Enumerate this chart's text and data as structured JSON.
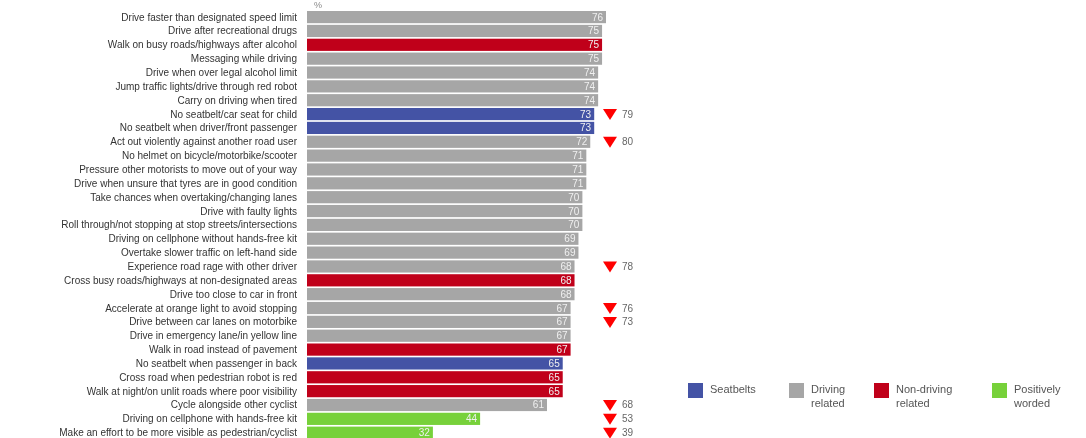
{
  "chart_data": {
    "type": "bar",
    "orientation": "horizontal",
    "xlabel": "%",
    "data_labels": true,
    "legend": "right",
    "categories": [
      "Drive faster than designated speed limit",
      "Drive after recreational drugs",
      "Walk on busy roads/highways after alcohol",
      "Messaging while driving",
      "Drive when over legal alcohol limit",
      "Jump traffic lights/drive through red robot",
      "Carry on driving when tired",
      "No seatbelt/car seat for child",
      "No seatbelt when driver/front passenger",
      "Act out violently against another road user",
      "No helmet on bicycle/motorbike/scooter",
      "Pressure other motorists to move out of your way",
      "Drive when unsure that tyres are in good condition",
      "Take chances when overtaking/changing lanes",
      "Drive with faulty lights",
      "Roll through/not stopping at stop streets/intersections",
      "Driving on cellphone without hands-free kit",
      "Overtake slower traffic on left-hand side",
      "Experience road rage with other driver",
      "Cross busy roads/highways at non-designated areas",
      "Drive too close to car in front",
      "Accelerate at orange light to avoid stopping",
      "Drive between car lanes on motorbike",
      "Drive in emergency lane/in yellow line",
      "Walk in road instead of pavement",
      "No seatbelt when passenger in back",
      "Cross road when pedestrian robot is red",
      "Walk at night/on unlit roads where poor visibility",
      "Cycle alongside other cyclist",
      "Driving on cellphone with hands-free kit",
      "Make an effort to be more visible as pedestrian/cyclist"
    ],
    "series": [
      {
        "name": "Seatbelts",
        "color": "#4453a5",
        "values": [
          null,
          null,
          null,
          null,
          null,
          null,
          null,
          73,
          73,
          null,
          null,
          null,
          null,
          null,
          null,
          null,
          null,
          null,
          null,
          null,
          null,
          null,
          null,
          null,
          null,
          65,
          null,
          null,
          null,
          null,
          null
        ]
      },
      {
        "name": "Driving related",
        "color": "#a6a6a6",
        "values": [
          76,
          75,
          null,
          75,
          74,
          74,
          74,
          null,
          null,
          72,
          71,
          71,
          71,
          70,
          70,
          70,
          69,
          69,
          68,
          null,
          68,
          67,
          67,
          67,
          null,
          null,
          null,
          null,
          61,
          null,
          null
        ]
      },
      {
        "name": "Non-driving related",
        "color": "#c0001a",
        "values": [
          null,
          null,
          75,
          null,
          null,
          null,
          null,
          null,
          null,
          null,
          null,
          null,
          null,
          null,
          null,
          null,
          null,
          null,
          null,
          68,
          null,
          null,
          null,
          null,
          67,
          null,
          65,
          65,
          null,
          null,
          null
        ]
      },
      {
        "name": "Positively worded",
        "color": "#77d13a",
        "values": [
          null,
          null,
          null,
          null,
          null,
          null,
          null,
          null,
          null,
          null,
          null,
          null,
          null,
          null,
          null,
          null,
          null,
          null,
          null,
          null,
          null,
          null,
          null,
          null,
          null,
          null,
          null,
          null,
          null,
          44,
          32
        ]
      }
    ],
    "annotations": [
      "79",
      "80",
      "78",
      "76",
      "73",
      "68",
      "53",
      "39"
    ]
  }
}
